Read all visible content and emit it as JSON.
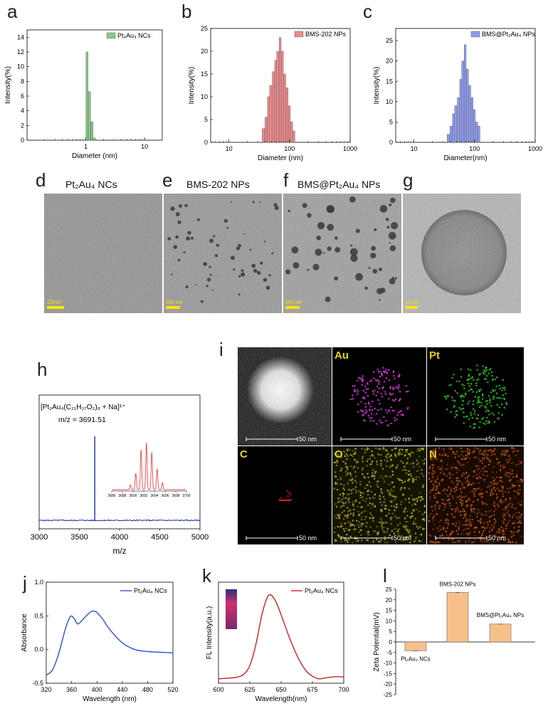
{
  "panels": {
    "a": {
      "letter": "a"
    },
    "b": {
      "letter": "b"
    },
    "c": {
      "letter": "c"
    },
    "d": {
      "letter": "d",
      "title": "Pt₂Au₄ NCs",
      "scale": "20nm"
    },
    "e": {
      "letter": "e",
      "title": "BMS-202 NPs",
      "scale": "200 nm"
    },
    "f": {
      "letter": "f",
      "title": "BMS@Pt₂Au₄ NPs",
      "scale": "200 nm"
    },
    "g": {
      "letter": "g",
      "scale": "10 nm"
    },
    "h": {
      "letter": "h",
      "formula": "[Pt₂Au₄(C₂₁H₂₇O₂)₈ + Na]¹⁺",
      "mz_label": "m/z = 3691.51"
    },
    "i": {
      "letter": "i",
      "elements": [
        "Au",
        "Pt",
        "C",
        "O",
        "N"
      ],
      "scale": "50 nm"
    },
    "j": {
      "letter": "j"
    },
    "k": {
      "letter": "k"
    },
    "l": {
      "letter": "l"
    }
  },
  "colors": {
    "green": "#86c98a",
    "red": "#f08a8a",
    "blue": "#8f9cf0",
    "navy": "#1f2fa0",
    "orange": "#f7c08a"
  },
  "chart_data": [
    {
      "id": "a",
      "type": "bar",
      "xscale": "log",
      "xlim": [
        0.1,
        20
      ],
      "ylim": [
        0,
        15
      ],
      "xticks": [
        "1",
        "10"
      ],
      "yticks": [
        "0",
        "2",
        "4",
        "6",
        "8",
        "10",
        "12",
        "14"
      ],
      "xlabel": "Diameter (nm)",
      "ylabel": "Intensity(%)",
      "series": [
        {
          "name": "Pt₂Au₄ NCs",
          "color": "#86c98a",
          "x": [
            0.95,
            1.05,
            1.15,
            1.27,
            1.4
          ],
          "y": [
            0,
            12,
            6.6,
            2.5,
            0.3
          ]
        }
      ]
    },
    {
      "id": "b",
      "type": "bar",
      "xscale": "log",
      "xlim": [
        5,
        1000
      ],
      "ylim": [
        0,
        25
      ],
      "xticks": [
        "10",
        "100",
        "1000"
      ],
      "yticks": [
        "0",
        "5",
        "10",
        "15",
        "20",
        "25"
      ],
      "xlabel": "Diameter (nm)",
      "ylabel": "Intensity(%)",
      "series": [
        {
          "name": "BMS-202 NPs",
          "color": "#f08a8a",
          "x": [
            37,
            41,
            45,
            49,
            54,
            59,
            64,
            70,
            76,
            83,
            91,
            99,
            108,
            118
          ],
          "y": [
            3,
            5.5,
            10,
            12.5,
            15.5,
            18,
            20,
            23,
            20,
            15,
            12,
            8,
            4.5,
            2.5
          ]
        }
      ]
    },
    {
      "id": "c",
      "type": "bar",
      "xscale": "log",
      "xlim": [
        5,
        1000
      ],
      "ylim": [
        0,
        28
      ],
      "xticks": [
        "10",
        "100",
        "1000"
      ],
      "yticks": [
        "0",
        "5",
        "10",
        "15",
        "20",
        "25"
      ],
      "xlabel": "Diameter(nm)",
      "ylabel": "Intensity(%)",
      "series": [
        {
          "name": "BMS@Pt₂Au₄ NPs",
          "color": "#8f9cf0",
          "x": [
            37,
            41,
            45,
            49,
            54,
            59,
            64,
            70,
            76,
            83,
            91,
            99,
            108,
            118
          ],
          "y": [
            2,
            4,
            7,
            9,
            11,
            15.5,
            20,
            24,
            18,
            14,
            11,
            8,
            5,
            4
          ]
        }
      ]
    },
    {
      "id": "h",
      "type": "line",
      "xlim": [
        3000,
        5000
      ],
      "xticks": [
        "3000",
        "3500",
        "4000",
        "4500",
        "5000"
      ],
      "xlabel": "m/z",
      "series": [
        {
          "color": "#1f2fa0",
          "peak_x": 3691.51
        }
      ],
      "inset": {
        "xticks": [
          "3686",
          "3688",
          "3690",
          "3692",
          "3694",
          "3696",
          "3698",
          "3700"
        ],
        "peaks": [
          {
            "x": 3689.5,
            "y": 0.1
          },
          {
            "x": 3690.5,
            "y": 0.35
          },
          {
            "x": 3691.5,
            "y": 0.85
          },
          {
            "x": 3692.5,
            "y": 1.0
          },
          {
            "x": 3693.5,
            "y": 0.8
          },
          {
            "x": 3694.5,
            "y": 0.45
          },
          {
            "x": 3695.5,
            "y": 0.15
          }
        ]
      }
    },
    {
      "id": "j",
      "type": "line",
      "xlim": [
        320,
        520
      ],
      "ylim": [
        -0.5,
        1.0
      ],
      "xticks": [
        "320",
        "360",
        "400",
        "440",
        "480",
        "520"
      ],
      "yticks": [
        "-0.5",
        "0.0",
        "0.5",
        "1.0"
      ],
      "xlabel": "Wavelength (nm)",
      "ylabel": "Absorbance",
      "series": [
        {
          "name": "Pt₂Au₄ NCs",
          "color": "#2d52d6",
          "x": [
            320,
            330,
            340,
            350,
            358,
            364,
            370,
            380,
            390,
            395,
            400,
            410,
            420,
            440,
            460,
            480,
            500,
            520
          ],
          "y": [
            -0.38,
            -0.3,
            -0.05,
            0.3,
            0.49,
            0.46,
            0.38,
            0.47,
            0.56,
            0.57,
            0.55,
            0.44,
            0.3,
            0.1,
            0.0,
            -0.03,
            -0.04,
            -0.05
          ]
        }
      ]
    },
    {
      "id": "k",
      "type": "line",
      "xlim": [
        600,
        700
      ],
      "xticks": [
        "600",
        "625",
        "650",
        "675",
        "700"
      ],
      "xlabel": "Wavelength(nm)",
      "ylabel": "FL Intensity(a.u.)",
      "series": [
        {
          "name": "Pt₂Au₄ NCs",
          "color": "#d02020",
          "x": [
            600,
            605,
            610,
            615,
            620,
            625,
            630,
            635,
            640,
            645,
            650,
            655,
            660,
            665,
            670,
            675,
            680,
            685,
            690,
            695,
            700
          ],
          "y": [
            0.05,
            0.055,
            0.06,
            0.07,
            0.1,
            0.2,
            0.45,
            0.8,
            1.0,
            0.95,
            0.78,
            0.58,
            0.4,
            0.25,
            0.14,
            0.08,
            0.05,
            0.06,
            0.07,
            0.075,
            0.07
          ]
        }
      ]
    },
    {
      "id": "l",
      "type": "bar",
      "ylim": [
        -25,
        25
      ],
      "yticks": [
        "-25",
        "-20",
        "-15",
        "-10",
        "-5",
        "0",
        "5",
        "10",
        "15",
        "20",
        "25"
      ],
      "ylabel": "Zeta Potential(mV)",
      "categories": [
        "Pt₂Au₄ NCs",
        "BMS-202 NPs",
        "BMS@Pt₂Au₄ NPs"
      ],
      "values": [
        -4.2,
        23.5,
        8.5
      ],
      "color": "#f7c08a"
    }
  ]
}
